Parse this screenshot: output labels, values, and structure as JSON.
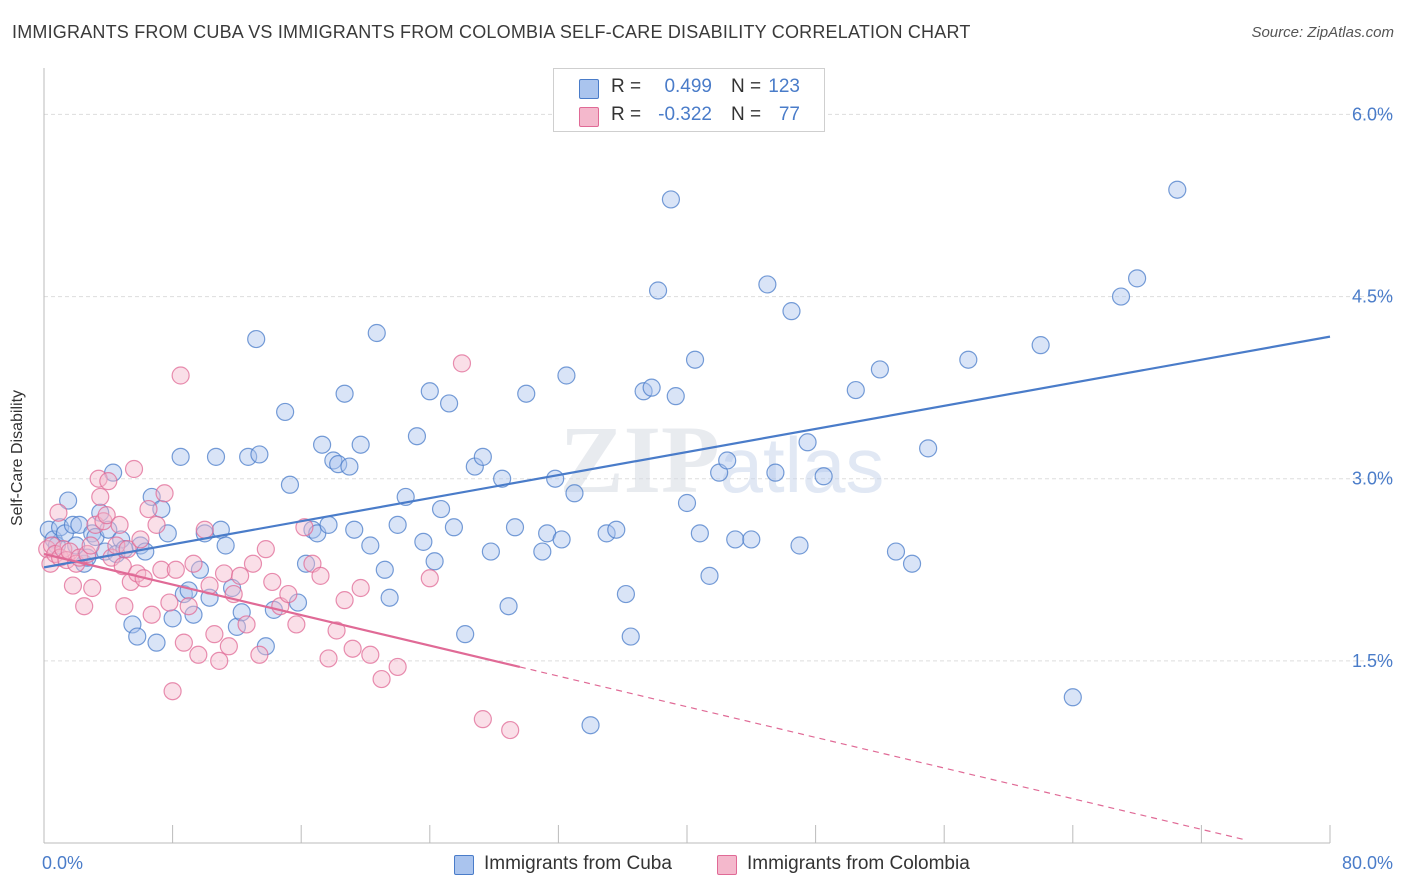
{
  "title": "IMMIGRANTS FROM CUBA VS IMMIGRANTS FROM COLOMBIA SELF-CARE DISABILITY CORRELATION CHART",
  "source": "Source: ZipAtlas.com",
  "watermark": "ZIPatlas",
  "colors": {
    "cuba": "#4a7cc9",
    "cuba_fill": "#aac4ee",
    "colombia": "#e06a96",
    "colombia_fill": "#f4b8cc",
    "axis_text": "#4a7cc9",
    "grid": "#dddddd"
  },
  "stats_legend": [
    {
      "r_label": "R =",
      "r_value": "0.499",
      "n_label": "N =",
      "n_value": "123"
    },
    {
      "r_label": "R =",
      "r_value": "-0.322",
      "n_label": "N =",
      "n_value": "77"
    }
  ],
  "chart_data": {
    "type": "scatter",
    "title": "IMMIGRANTS FROM CUBA VS IMMIGRANTS FROM COLOMBIA SELF-CARE DISABILITY CORRELATION CHART",
    "xlabel": "",
    "ylabel": "Self-Care Disability",
    "x_tick_labels": [
      "0.0%",
      "80.0%"
    ],
    "y_tick_labels": [
      "1.5%",
      "3.0%",
      "4.5%",
      "6.0%"
    ],
    "y_ticks": [
      1.5,
      3.0,
      4.5,
      6.0
    ],
    "xlim": [
      0,
      80
    ],
    "ylim": [
      0,
      6.3
    ],
    "grid": true,
    "legend_position": "bottom-center",
    "series": [
      {
        "name": "Immigrants from Cuba",
        "regression": {
          "x": [
            0,
            80
          ],
          "y": [
            2.27,
            4.17
          ]
        },
        "points": [
          [
            0.3,
            2.58
          ],
          [
            0.6,
            2.5
          ],
          [
            0.8,
            2.45
          ],
          [
            1.0,
            2.6
          ],
          [
            1.3,
            2.55
          ],
          [
            1.5,
            2.82
          ],
          [
            1.8,
            2.62
          ],
          [
            2.0,
            2.45
          ],
          [
            2.2,
            2.62
          ],
          [
            2.5,
            2.3
          ],
          [
            2.7,
            2.35
          ],
          [
            3.0,
            2.55
          ],
          [
            3.2,
            2.52
          ],
          [
            3.5,
            2.72
          ],
          [
            3.8,
            2.4
          ],
          [
            4.0,
            2.58
          ],
          [
            4.3,
            3.05
          ],
          [
            4.5,
            2.38
          ],
          [
            4.8,
            2.5
          ],
          [
            5.0,
            2.42
          ],
          [
            5.5,
            1.8
          ],
          [
            5.8,
            1.7
          ],
          [
            6.0,
            2.45
          ],
          [
            6.3,
            2.4
          ],
          [
            6.7,
            2.85
          ],
          [
            7.0,
            1.65
          ],
          [
            7.3,
            2.75
          ],
          [
            7.7,
            2.55
          ],
          [
            8.0,
            1.85
          ],
          [
            8.5,
            3.18
          ],
          [
            8.7,
            2.05
          ],
          [
            9.0,
            2.08
          ],
          [
            9.3,
            1.88
          ],
          [
            9.7,
            2.25
          ],
          [
            10.0,
            2.55
          ],
          [
            10.3,
            2.02
          ],
          [
            10.7,
            3.18
          ],
          [
            11.0,
            2.58
          ],
          [
            11.3,
            2.45
          ],
          [
            11.7,
            2.1
          ],
          [
            12.0,
            1.78
          ],
          [
            12.3,
            1.9
          ],
          [
            12.7,
            3.18
          ],
          [
            13.2,
            4.15
          ],
          [
            13.4,
            3.2
          ],
          [
            13.8,
            1.62
          ],
          [
            14.3,
            1.92
          ],
          [
            15.0,
            3.55
          ],
          [
            15.3,
            2.95
          ],
          [
            15.8,
            1.98
          ],
          [
            16.3,
            2.3
          ],
          [
            16.7,
            2.58
          ],
          [
            17.0,
            2.55
          ],
          [
            17.3,
            3.28
          ],
          [
            17.7,
            2.62
          ],
          [
            18.0,
            3.15
          ],
          [
            18.3,
            3.12
          ],
          [
            18.7,
            3.7
          ],
          [
            19.0,
            3.1
          ],
          [
            19.3,
            2.58
          ],
          [
            19.7,
            3.28
          ],
          [
            20.3,
            2.45
          ],
          [
            20.7,
            4.2
          ],
          [
            21.2,
            2.25
          ],
          [
            21.5,
            2.02
          ],
          [
            22.0,
            2.62
          ],
          [
            22.5,
            2.85
          ],
          [
            23.2,
            3.35
          ],
          [
            23.6,
            2.48
          ],
          [
            24.0,
            3.72
          ],
          [
            24.3,
            2.32
          ],
          [
            24.7,
            2.75
          ],
          [
            25.2,
            3.62
          ],
          [
            25.5,
            2.6
          ],
          [
            26.2,
            1.72
          ],
          [
            26.8,
            3.1
          ],
          [
            27.3,
            3.18
          ],
          [
            27.8,
            2.4
          ],
          [
            28.5,
            3.0
          ],
          [
            28.9,
            1.95
          ],
          [
            29.3,
            2.6
          ],
          [
            30.0,
            3.7
          ],
          [
            31.0,
            2.4
          ],
          [
            31.3,
            2.55
          ],
          [
            31.8,
            3.0
          ],
          [
            32.2,
            2.5
          ],
          [
            32.5,
            3.85
          ],
          [
            33.0,
            2.88
          ],
          [
            34.0,
            0.97
          ],
          [
            35.0,
            2.55
          ],
          [
            35.6,
            2.58
          ],
          [
            36.2,
            2.05
          ],
          [
            36.5,
            1.7
          ],
          [
            37.3,
            3.72
          ],
          [
            37.8,
            3.75
          ],
          [
            38.2,
            4.55
          ],
          [
            39.0,
            5.3
          ],
          [
            39.3,
            3.68
          ],
          [
            40.0,
            2.8
          ],
          [
            40.5,
            3.98
          ],
          [
            40.8,
            2.55
          ],
          [
            41.4,
            2.2
          ],
          [
            42.0,
            3.05
          ],
          [
            42.5,
            3.15
          ],
          [
            43.0,
            2.5
          ],
          [
            44.0,
            2.5
          ],
          [
            45.0,
            4.6
          ],
          [
            45.5,
            3.05
          ],
          [
            46.5,
            4.38
          ],
          [
            47.0,
            2.45
          ],
          [
            47.5,
            3.3
          ],
          [
            48.5,
            3.02
          ],
          [
            50.5,
            3.73
          ],
          [
            52.0,
            3.9
          ],
          [
            53.0,
            2.4
          ],
          [
            54.0,
            2.3
          ],
          [
            55.0,
            3.25
          ],
          [
            57.5,
            3.98
          ],
          [
            62.0,
            4.1
          ],
          [
            64.0,
            1.2
          ],
          [
            67.0,
            4.5
          ],
          [
            68.0,
            4.65
          ],
          [
            70.5,
            5.38
          ]
        ]
      },
      {
        "name": "Immigrants from Colombia",
        "regression": {
          "x": [
            0,
            29.6
          ],
          "y": [
            2.38,
            1.45
          ]
        },
        "regression_dashed": {
          "x": [
            29.6,
            80
          ],
          "y": [
            1.45,
            -0.14
          ]
        },
        "points": [
          [
            0.2,
            2.42
          ],
          [
            0.4,
            2.3
          ],
          [
            0.5,
            2.45
          ],
          [
            0.7,
            2.38
          ],
          [
            0.9,
            2.72
          ],
          [
            1.0,
            2.35
          ],
          [
            1.2,
            2.42
          ],
          [
            1.4,
            2.33
          ],
          [
            1.6,
            2.4
          ],
          [
            1.8,
            2.12
          ],
          [
            2.0,
            2.3
          ],
          [
            2.2,
            2.35
          ],
          [
            2.5,
            1.95
          ],
          [
            2.7,
            2.38
          ],
          [
            2.9,
            2.45
          ],
          [
            3.0,
            2.1
          ],
          [
            3.2,
            2.62
          ],
          [
            3.4,
            3.0
          ],
          [
            3.5,
            2.85
          ],
          [
            3.7,
            2.65
          ],
          [
            3.9,
            2.7
          ],
          [
            4.0,
            2.98
          ],
          [
            4.2,
            2.35
          ],
          [
            4.5,
            2.45
          ],
          [
            4.7,
            2.62
          ],
          [
            4.9,
            2.28
          ],
          [
            5.0,
            1.95
          ],
          [
            5.2,
            2.42
          ],
          [
            5.4,
            2.15
          ],
          [
            5.6,
            3.08
          ],
          [
            5.8,
            2.22
          ],
          [
            6.0,
            2.5
          ],
          [
            6.2,
            2.18
          ],
          [
            6.5,
            2.75
          ],
          [
            6.7,
            1.88
          ],
          [
            7.0,
            2.62
          ],
          [
            7.3,
            2.25
          ],
          [
            7.5,
            2.88
          ],
          [
            7.8,
            1.98
          ],
          [
            8.0,
            1.25
          ],
          [
            8.2,
            2.25
          ],
          [
            8.5,
            3.85
          ],
          [
            8.7,
            1.65
          ],
          [
            9.0,
            1.95
          ],
          [
            9.3,
            2.3
          ],
          [
            9.6,
            1.55
          ],
          [
            10.0,
            2.58
          ],
          [
            10.3,
            2.12
          ],
          [
            10.6,
            1.72
          ],
          [
            10.9,
            1.5
          ],
          [
            11.2,
            2.22
          ],
          [
            11.5,
            1.62
          ],
          [
            11.8,
            2.05
          ],
          [
            12.2,
            2.2
          ],
          [
            12.6,
            1.8
          ],
          [
            13.0,
            2.3
          ],
          [
            13.4,
            1.55
          ],
          [
            13.8,
            2.42
          ],
          [
            14.2,
            2.15
          ],
          [
            14.7,
            1.95
          ],
          [
            15.2,
            2.05
          ],
          [
            15.7,
            1.8
          ],
          [
            16.2,
            2.6
          ],
          [
            16.7,
            2.3
          ],
          [
            17.2,
            2.2
          ],
          [
            17.7,
            1.52
          ],
          [
            18.2,
            1.75
          ],
          [
            18.7,
            2.0
          ],
          [
            19.2,
            1.6
          ],
          [
            19.7,
            2.1
          ],
          [
            20.3,
            1.55
          ],
          [
            21.0,
            1.35
          ],
          [
            22.0,
            1.45
          ],
          [
            24.0,
            2.18
          ],
          [
            26.0,
            3.95
          ],
          [
            27.3,
            1.02
          ],
          [
            29.0,
            0.93
          ]
        ]
      }
    ]
  }
}
